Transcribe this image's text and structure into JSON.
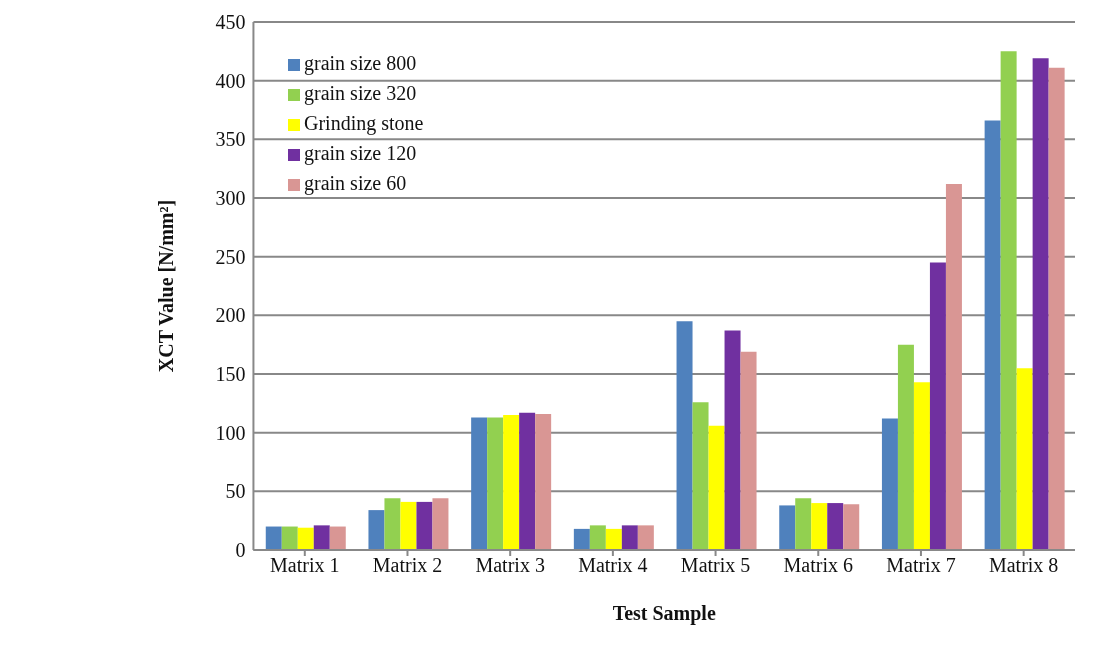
{
  "chart_data": {
    "type": "bar",
    "xlabel": "Test Sample",
    "ylabel": "XCT Value [N/mm²]",
    "categories": [
      "Matrix 1",
      "Matrix 2",
      "Matrix 3",
      "Matrix 4",
      "Matrix 5",
      "Matrix 6",
      "Matrix 7",
      "Matrix 8"
    ],
    "series": [
      {
        "name": "grain size 800",
        "color": "#4f81bd",
        "values": [
          20,
          34,
          113,
          18,
          195,
          38,
          112,
          366
        ]
      },
      {
        "name": "grain size 320",
        "color": "#92d050",
        "values": [
          20,
          44,
          113,
          21,
          126,
          44,
          175,
          425
        ]
      },
      {
        "name": "Grinding stone",
        "color": "#ffff00",
        "values": [
          19,
          41,
          115,
          18,
          106,
          40,
          143,
          155
        ]
      },
      {
        "name": "grain size 120",
        "color": "#7030a0",
        "values": [
          21,
          41,
          117,
          21,
          187,
          40,
          245,
          419
        ]
      },
      {
        "name": "grain size 60",
        "color": "#d99694",
        "values": [
          20,
          44,
          116,
          21,
          169,
          39,
          312,
          411
        ]
      }
    ],
    "ylim": [
      0,
      450
    ],
    "yticks": [
      0,
      50,
      100,
      150,
      200,
      250,
      300,
      350,
      400,
      450
    ],
    "grid": "y",
    "legend": "top left"
  }
}
